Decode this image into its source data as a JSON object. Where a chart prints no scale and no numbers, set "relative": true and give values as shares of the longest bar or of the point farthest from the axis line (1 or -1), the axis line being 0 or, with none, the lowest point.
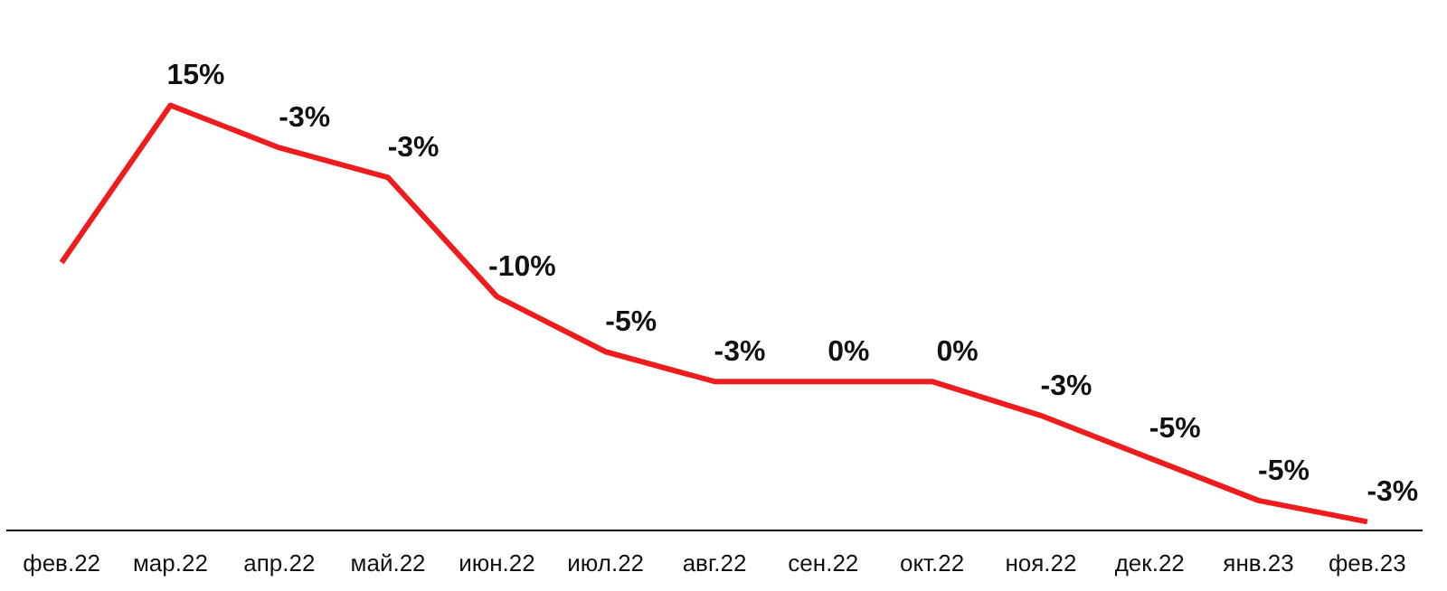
{
  "chart_data": {
    "type": "line",
    "relative": true,
    "categories": [
      "фев.22",
      "мар.22",
      "апр.22",
      "май.22",
      "июн.22",
      "июл.22",
      "авг.22",
      "сен.22",
      "окт.22",
      "ноя.22",
      "дек.22",
      "янв.23",
      "фев.23"
    ],
    "series": [
      {
        "color": "#ee1c1c",
        "values": [
          0.63,
          1,
          0.9,
          0.83,
          0.55,
          0.42,
          0.35,
          0.35,
          0.35,
          0.27,
          0.17,
          0.07,
          0.02
        ]
      }
    ],
    "annotations": [
      {
        "text": "15%",
        "x": "мар.22",
        "y": 1
      },
      {
        "text": "-3%",
        "x": "апр.22",
        "y": 0.9
      },
      {
        "text": "-3%",
        "x": "май.22",
        "y": 0.83
      },
      {
        "text": "-10%",
        "x": "июн.22",
        "y": 0.55
      },
      {
        "text": "-5%",
        "x": "июл.22",
        "y": 0.42
      },
      {
        "text": "-3%",
        "x": "авг.22",
        "y": 0.35
      },
      {
        "text": "0%",
        "x": "сен.22",
        "y": 0.35
      },
      {
        "text": "0%",
        "x": "окт.22",
        "y": 0.35
      },
      {
        "text": "-3%",
        "x": "ноя.22",
        "y": 0.27
      },
      {
        "text": "-5%",
        "x": "дек.22",
        "y": 0.17
      },
      {
        "text": "-5%",
        "x": "янв.23",
        "y": 0.07
      },
      {
        "text": "-3%",
        "x": "фев.23",
        "y": 0.02
      }
    ],
    "marker": "none",
    "line_style": "solid",
    "grid": false,
    "legend": false
  }
}
